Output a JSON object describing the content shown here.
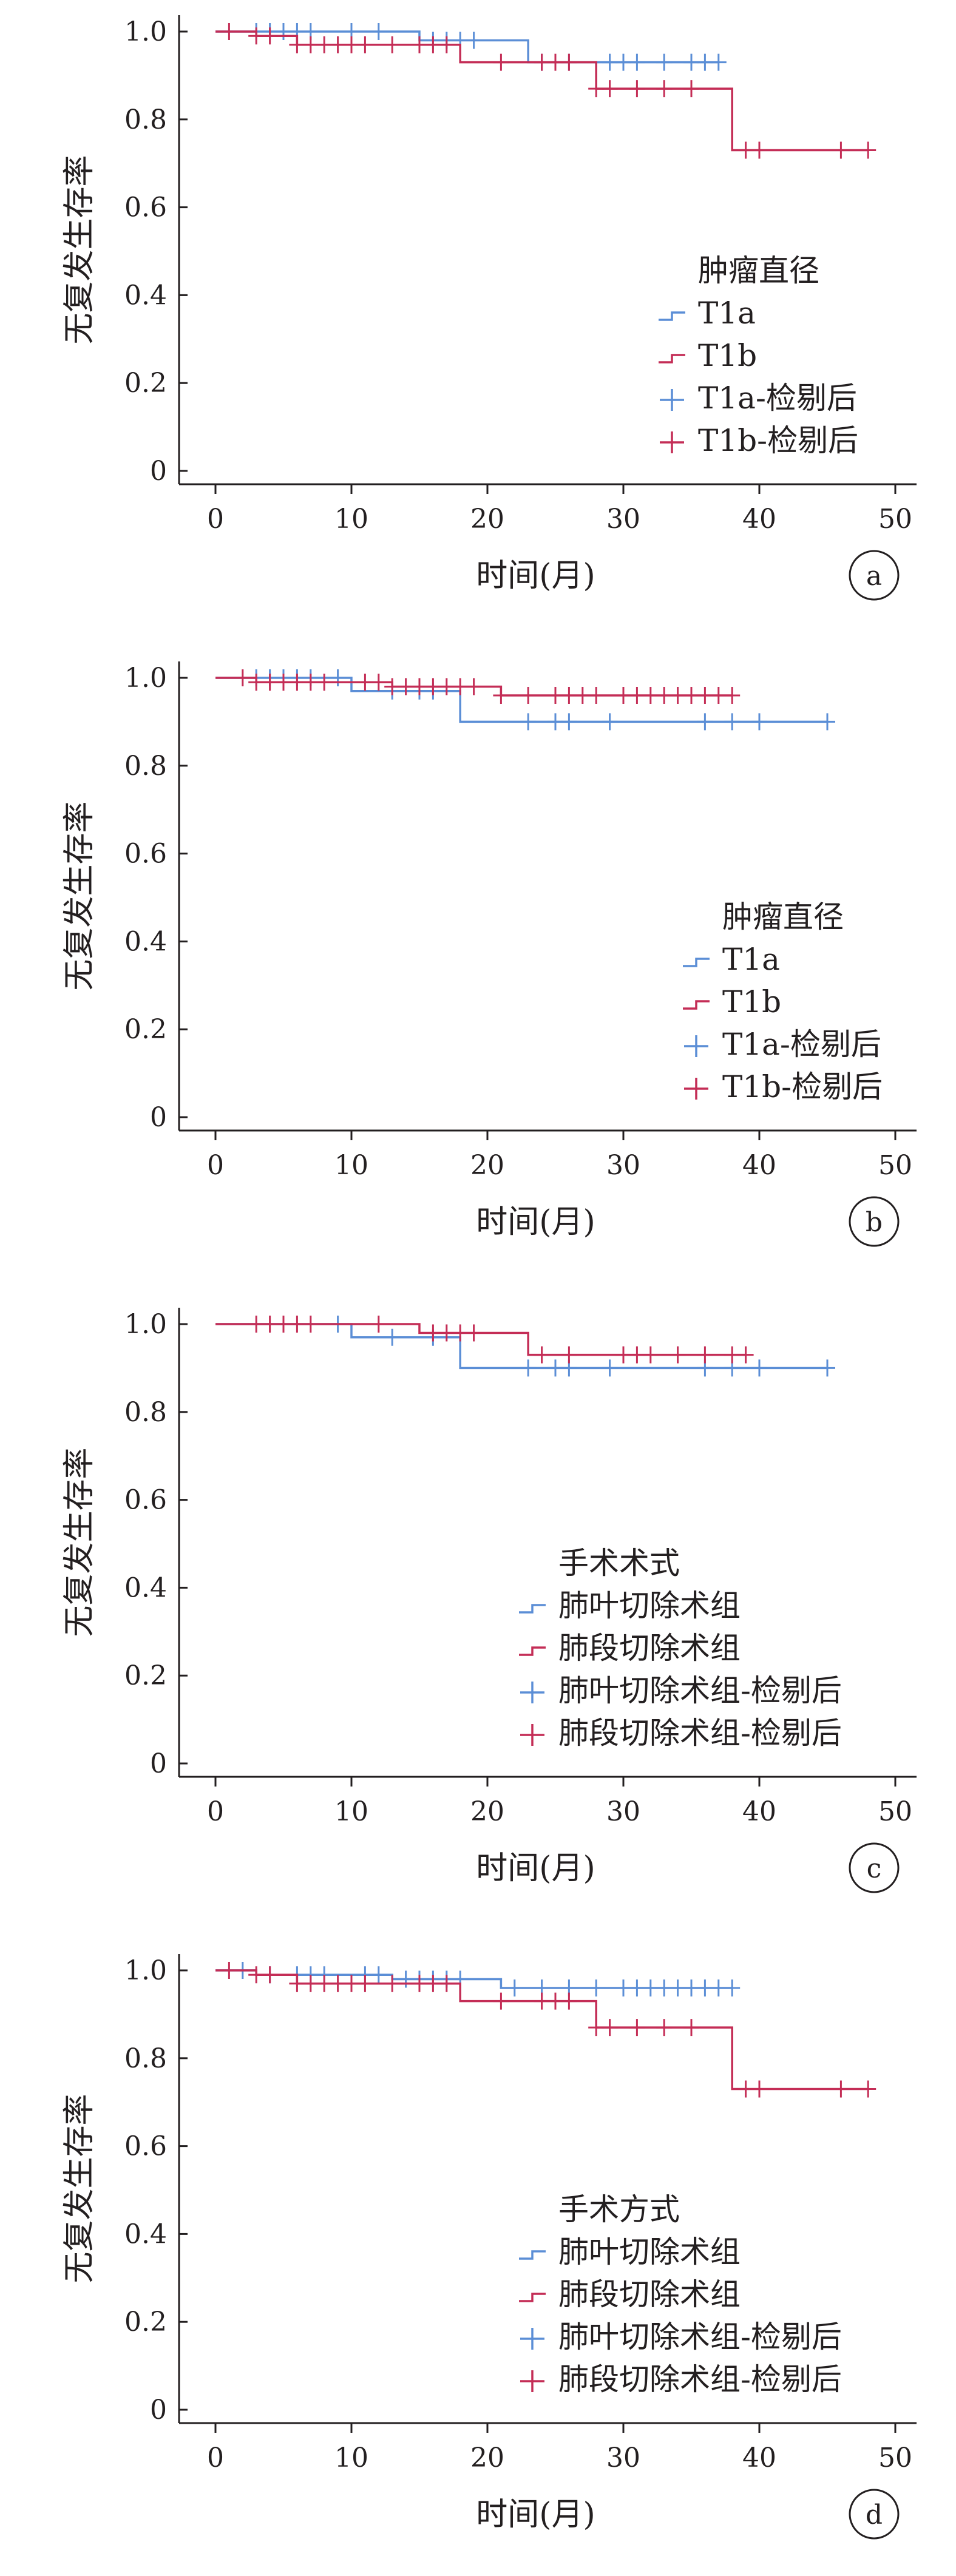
{
  "colors": {
    "series1": "#5b8ed6",
    "series2": "#c42d56",
    "axis": "#231f20"
  },
  "chart_data": [
    {
      "type": "line",
      "panel_label": "a",
      "xlabel": "时间(月)",
      "ylabel": "无复发生存率",
      "xlim": [
        0,
        50
      ],
      "ylim": [
        0,
        1.0
      ],
      "xticks": [
        "0",
        "10",
        "20",
        "30",
        "40",
        "50"
      ],
      "yticks": [
        "0",
        "0.2",
        "0.4",
        "0.6",
        "0.8",
        "1.0"
      ],
      "legend_title": "肿瘤直径",
      "legend": [
        "T1a",
        "T1b",
        "T1a-检剔后",
        "T1b-检剔后"
      ],
      "series": [
        {
          "name": "T1a",
          "steps": [
            [
              0,
              1.0
            ],
            [
              15,
              0.98
            ],
            [
              23,
              0.93
            ],
            [
              37,
              0.93
            ]
          ],
          "censored": [
            [
              3,
              1.0
            ],
            [
              4,
              1.0
            ],
            [
              5,
              1.0
            ],
            [
              6,
              1.0
            ],
            [
              7,
              1.0
            ],
            [
              10,
              1.0
            ],
            [
              12,
              1.0
            ],
            [
              16,
              0.98
            ],
            [
              17,
              0.98
            ],
            [
              18,
              0.98
            ],
            [
              19,
              0.98
            ],
            [
              24,
              0.93
            ],
            [
              26,
              0.93
            ],
            [
              29,
              0.93
            ],
            [
              30,
              0.93
            ],
            [
              31,
              0.93
            ],
            [
              33,
              0.93
            ],
            [
              35,
              0.93
            ],
            [
              36,
              0.93
            ],
            [
              37,
              0.93
            ]
          ]
        },
        {
          "name": "T1b",
          "steps": [
            [
              0,
              1.0
            ],
            [
              3,
              0.99
            ],
            [
              6,
              0.97
            ],
            [
              18,
              0.93
            ],
            [
              28,
              0.87
            ],
            [
              38,
              0.73
            ],
            [
              48,
              0.73
            ]
          ],
          "censored": [
            [
              1,
              1.0
            ],
            [
              3,
              0.99
            ],
            [
              4,
              0.99
            ],
            [
              6,
              0.97
            ],
            [
              7,
              0.97
            ],
            [
              8,
              0.97
            ],
            [
              9,
              0.97
            ],
            [
              10,
              0.97
            ],
            [
              11,
              0.97
            ],
            [
              13,
              0.97
            ],
            [
              15,
              0.97
            ],
            [
              16,
              0.97
            ],
            [
              17,
              0.97
            ],
            [
              21,
              0.93
            ],
            [
              24,
              0.93
            ],
            [
              25,
              0.93
            ],
            [
              26,
              0.93
            ],
            [
              28,
              0.87
            ],
            [
              29,
              0.87
            ],
            [
              31,
              0.87
            ],
            [
              33,
              0.87
            ],
            [
              35,
              0.87
            ],
            [
              39,
              0.73
            ],
            [
              40,
              0.73
            ],
            [
              46,
              0.73
            ],
            [
              48,
              0.73
            ]
          ]
        }
      ]
    },
    {
      "type": "line",
      "panel_label": "b",
      "xlabel": "时间(月)",
      "ylabel": "无复发生存率",
      "xlim": [
        0,
        50
      ],
      "ylim": [
        0,
        1.0
      ],
      "xticks": [
        "0",
        "10",
        "20",
        "30",
        "40",
        "50"
      ],
      "yticks": [
        "0",
        "0.2",
        "0.4",
        "0.6",
        "0.8",
        "1.0"
      ],
      "legend_title": "肿瘤直径",
      "legend": [
        "T1a",
        "T1b",
        "T1a-检剔后",
        "T1b-检剔后"
      ],
      "series": [
        {
          "name": "T1a",
          "steps": [
            [
              0,
              1.0
            ],
            [
              10,
              0.97
            ],
            [
              18,
              0.9
            ],
            [
              45,
              0.9
            ]
          ],
          "censored": [
            [
              3,
              1.0
            ],
            [
              4,
              1.0
            ],
            [
              5,
              1.0
            ],
            [
              6,
              1.0
            ],
            [
              7,
              1.0
            ],
            [
              9,
              1.0
            ],
            [
              13,
              0.97
            ],
            [
              15,
              0.97
            ],
            [
              16,
              0.97
            ],
            [
              23,
              0.9
            ],
            [
              25,
              0.9
            ],
            [
              26,
              0.9
            ],
            [
              29,
              0.9
            ],
            [
              36,
              0.9
            ],
            [
              38,
              0.9
            ],
            [
              40,
              0.9
            ],
            [
              45,
              0.9
            ]
          ]
        },
        {
          "name": "T1b",
          "steps": [
            [
              0,
              1.0
            ],
            [
              3,
              0.99
            ],
            [
              13,
              0.98
            ],
            [
              21,
              0.96
            ],
            [
              38,
              0.96
            ]
          ],
          "censored": [
            [
              2,
              1.0
            ],
            [
              3,
              0.99
            ],
            [
              4,
              0.99
            ],
            [
              5,
              0.99
            ],
            [
              6,
              0.99
            ],
            [
              7,
              0.99
            ],
            [
              8,
              0.99
            ],
            [
              11,
              0.99
            ],
            [
              12,
              0.99
            ],
            [
              13,
              0.98
            ],
            [
              14,
              0.98
            ],
            [
              15,
              0.98
            ],
            [
              16,
              0.98
            ],
            [
              17,
              0.98
            ],
            [
              18,
              0.98
            ],
            [
              19,
              0.98
            ],
            [
              21,
              0.96
            ],
            [
              23,
              0.96
            ],
            [
              25,
              0.96
            ],
            [
              26,
              0.96
            ],
            [
              27,
              0.96
            ],
            [
              28,
              0.96
            ],
            [
              30,
              0.96
            ],
            [
              31,
              0.96
            ],
            [
              32,
              0.96
            ],
            [
              33,
              0.96
            ],
            [
              34,
              0.96
            ],
            [
              35,
              0.96
            ],
            [
              36,
              0.96
            ],
            [
              37,
              0.96
            ],
            [
              38,
              0.96
            ]
          ]
        }
      ]
    },
    {
      "type": "line",
      "panel_label": "c",
      "xlabel": "时间(月)",
      "ylabel": "无复发生存率",
      "xlim": [
        0,
        50
      ],
      "ylim": [
        0,
        1.0
      ],
      "xticks": [
        "0",
        "10",
        "20",
        "30",
        "40",
        "50"
      ],
      "yticks": [
        "0",
        "0.2",
        "0.4",
        "0.6",
        "0.8",
        "1.0"
      ],
      "legend_title": "手术术式",
      "legend": [
        "肺叶切除术组",
        "肺段切除术组",
        "肺叶切除术组-检剔后",
        "肺段切除术组-检剔后"
      ],
      "series": [
        {
          "name": "肺叶切除术组",
          "steps": [
            [
              0,
              1.0
            ],
            [
              10,
              0.97
            ],
            [
              18,
              0.9
            ],
            [
              45,
              0.9
            ]
          ],
          "censored": [
            [
              9,
              1.0
            ],
            [
              13,
              0.97
            ],
            [
              16,
              0.97
            ],
            [
              23,
              0.9
            ],
            [
              25,
              0.9
            ],
            [
              26,
              0.9
            ],
            [
              29,
              0.9
            ],
            [
              36,
              0.9
            ],
            [
              38,
              0.9
            ],
            [
              40,
              0.9
            ],
            [
              45,
              0.9
            ]
          ]
        },
        {
          "name": "肺段切除术组",
          "steps": [
            [
              0,
              1.0
            ],
            [
              15,
              0.98
            ],
            [
              23,
              0.93
            ],
            [
              39,
              0.93
            ]
          ],
          "censored": [
            [
              3,
              1.0
            ],
            [
              4,
              1.0
            ],
            [
              5,
              1.0
            ],
            [
              6,
              1.0
            ],
            [
              7,
              1.0
            ],
            [
              12,
              1.0
            ],
            [
              16,
              0.98
            ],
            [
              17,
              0.98
            ],
            [
              18,
              0.98
            ],
            [
              19,
              0.98
            ],
            [
              24,
              0.93
            ],
            [
              26,
              0.93
            ],
            [
              30,
              0.93
            ],
            [
              31,
              0.93
            ],
            [
              32,
              0.93
            ],
            [
              34,
              0.93
            ],
            [
              36,
              0.93
            ],
            [
              38,
              0.93
            ],
            [
              39,
              0.93
            ]
          ]
        }
      ]
    },
    {
      "type": "line",
      "panel_label": "d",
      "xlabel": "时间(月)",
      "ylabel": "无复发生存率",
      "xlim": [
        0,
        50
      ],
      "ylim": [
        0,
        1.0
      ],
      "xticks": [
        "0",
        "10",
        "20",
        "30",
        "40",
        "50"
      ],
      "yticks": [
        "0",
        "0.2",
        "0.4",
        "0.6",
        "0.8",
        "1.0"
      ],
      "legend_title": "手术方式",
      "legend": [
        "肺叶切除术组",
        "肺段切除术组",
        "肺叶切除术组-检剔后",
        "肺段切除术组-检剔后"
      ],
      "series": [
        {
          "name": "肺叶切除术组",
          "steps": [
            [
              0,
              1.0
            ],
            [
              3,
              0.99
            ],
            [
              13,
              0.98
            ],
            [
              21,
              0.96
            ],
            [
              38,
              0.96
            ]
          ],
          "censored": [
            [
              2,
              1.0
            ],
            [
              4,
              0.99
            ],
            [
              6,
              0.99
            ],
            [
              7,
              0.99
            ],
            [
              8,
              0.99
            ],
            [
              11,
              0.99
            ],
            [
              12,
              0.99
            ],
            [
              14,
              0.98
            ],
            [
              15,
              0.98
            ],
            [
              16,
              0.98
            ],
            [
              17,
              0.98
            ],
            [
              18,
              0.98
            ],
            [
              22,
              0.96
            ],
            [
              24,
              0.96
            ],
            [
              26,
              0.96
            ],
            [
              28,
              0.96
            ],
            [
              30,
              0.96
            ],
            [
              31,
              0.96
            ],
            [
              32,
              0.96
            ],
            [
              33,
              0.96
            ],
            [
              34,
              0.96
            ],
            [
              35,
              0.96
            ],
            [
              36,
              0.96
            ],
            [
              37,
              0.96
            ],
            [
              38,
              0.96
            ]
          ]
        },
        {
          "name": "肺段切除术组",
          "steps": [
            [
              0,
              1.0
            ],
            [
              3,
              0.99
            ],
            [
              6,
              0.97
            ],
            [
              18,
              0.93
            ],
            [
              28,
              0.87
            ],
            [
              38,
              0.73
            ],
            [
              48,
              0.73
            ]
          ],
          "censored": [
            [
              1,
              1.0
            ],
            [
              3,
              0.99
            ],
            [
              4,
              0.99
            ],
            [
              6,
              0.97
            ],
            [
              7,
              0.97
            ],
            [
              8,
              0.97
            ],
            [
              9,
              0.97
            ],
            [
              10,
              0.97
            ],
            [
              11,
              0.97
            ],
            [
              13,
              0.97
            ],
            [
              15,
              0.97
            ],
            [
              16,
              0.97
            ],
            [
              17,
              0.97
            ],
            [
              21,
              0.93
            ],
            [
              24,
              0.93
            ],
            [
              25,
              0.93
            ],
            [
              26,
              0.93
            ],
            [
              28,
              0.87
            ],
            [
              29,
              0.87
            ],
            [
              31,
              0.87
            ],
            [
              33,
              0.87
            ],
            [
              35,
              0.87
            ],
            [
              39,
              0.73
            ],
            [
              40,
              0.73
            ],
            [
              46,
              0.73
            ],
            [
              48,
              0.73
            ]
          ]
        }
      ]
    }
  ]
}
